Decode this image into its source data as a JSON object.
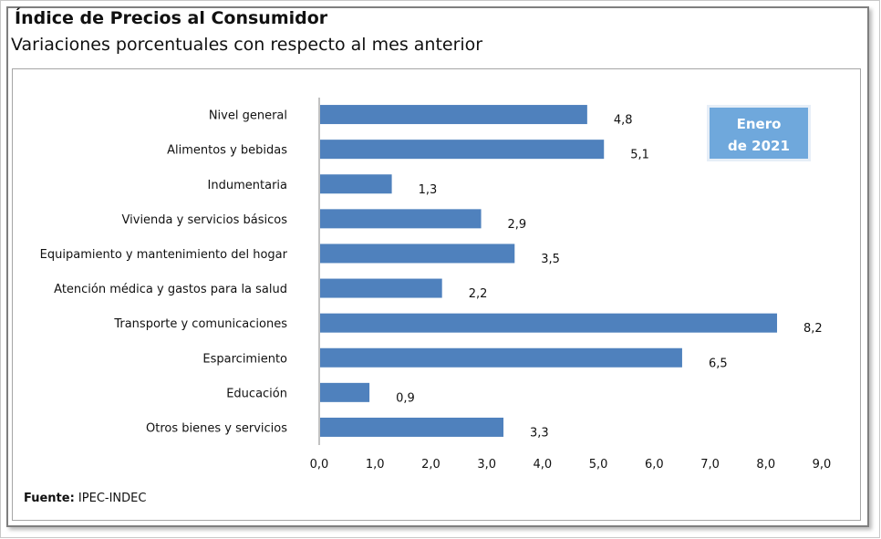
{
  "chart_data": {
    "type": "bar",
    "orientation": "horizontal",
    "title": "Índice de Precios al Consumidor",
    "subtitle": "Variaciones porcentuales con respecto al mes anterior",
    "categories": [
      "Nivel  general",
      "Alimentos y bebidas",
      "Indumentaria",
      "Vivienda y servicios básicos",
      "Equipamiento y  mantenimiento del hogar",
      "Atención médica y gastos para la salud",
      "Transporte y comunicaciones",
      "Esparcimiento",
      "Educación",
      "Otros bienes y servicios"
    ],
    "values": [
      4.8,
      5.1,
      1.3,
      2.9,
      3.5,
      2.2,
      8.2,
      6.5,
      0.9,
      3.3
    ],
    "value_labels": [
      "4,8",
      "5,1",
      "1,3",
      "2,9",
      "3,5",
      "2,2",
      "8,2",
      "6,5",
      "0,9",
      "3,3"
    ],
    "xlim": [
      0,
      9
    ],
    "x_ticks": [
      "0,0",
      "1,0",
      "2,0",
      "3,0",
      "4,0",
      "5,0",
      "6,0",
      "7,0",
      "8,0",
      "9,0"
    ],
    "grid": false,
    "bar_color": "#4f81bd",
    "annotation": {
      "line1": "Enero",
      "line2": "de 2021",
      "color": "#6fa8dc"
    },
    "source_label": "Fuente:",
    "source_value": " IPEC-INDEC"
  }
}
